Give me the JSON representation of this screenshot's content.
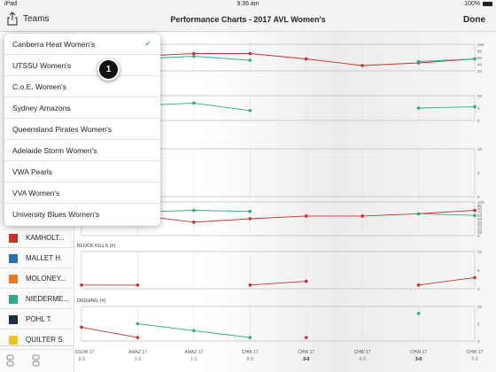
{
  "status_bar": {
    "carrier": "iPad",
    "time": "9:36 am",
    "battery": "100%"
  },
  "nav": {
    "teams_label": "Teams",
    "title": "Performance Charts - 2017 AVL Women's",
    "done_label": "Done"
  },
  "team_menu": {
    "items": [
      {
        "label": "Canberra Heat Women's",
        "selected": true
      },
      {
        "label": "UTSSU Women's",
        "selected": false
      },
      {
        "label": "C.o.E. Women's",
        "selected": false
      },
      {
        "label": "Sydney Amazons",
        "selected": false
      },
      {
        "label": "Queensland Pirates Women's",
        "selected": false
      },
      {
        "label": "Adelaide Storm Women's",
        "selected": false
      },
      {
        "label": "VWA Pearls",
        "selected": false
      },
      {
        "label": "VVA Women's",
        "selected": false
      },
      {
        "label": "University Blues Women's",
        "selected": false
      }
    ],
    "badge": "1"
  },
  "players": [
    {
      "name": "KAMHOLT...",
      "color": "#c9302c"
    },
    {
      "name": "MALLET H.",
      "color": "#2a6db5"
    },
    {
      "name": "MOLONEY...",
      "color": "#e57b25"
    },
    {
      "name": "NIEDERME...",
      "color": "#2bab8a"
    },
    {
      "name": "POHL T.",
      "color": "#1f2d44"
    },
    {
      "name": "QUILTER S.",
      "color": "#f2c318"
    }
  ],
  "chart_data": [
    {
      "type": "line",
      "title": "",
      "ylim": [
        0,
        100
      ],
      "yticks": [
        "100",
        "80",
        "60",
        "40",
        "20"
      ],
      "series": [
        {
          "color": "#c9302c",
          "values": [
            null,
            55,
            65,
            65,
            45,
            20,
            30,
            45
          ]
        },
        {
          "color": "#2bab8a",
          "values": [
            null,
            45,
            55,
            40,
            null,
            null,
            35,
            45
          ]
        }
      ]
    },
    {
      "type": "line",
      "title": "",
      "ylim": [
        0,
        10
      ],
      "yticks": [
        "10",
        "5",
        "0"
      ],
      "series": [
        {
          "color": "#2bab8a",
          "values": [
            null,
            6,
            7,
            4,
            null,
            null,
            5,
            5.5
          ]
        }
      ]
    },
    {
      "type": "line",
      "title": "",
      "ylim": [
        0,
        10
      ],
      "yticks": [
        "10",
        "5",
        "0"
      ],
      "series": []
    },
    {
      "type": "line",
      "title": "",
      "ylim": [
        0,
        100
      ],
      "yticks": [
        "100",
        "90",
        "80",
        "70",
        "60",
        "50",
        "40",
        "30",
        "20",
        "10",
        "0"
      ],
      "series": [
        {
          "color": "#c9302c",
          "values": [
            null,
            60,
            40,
            50,
            58,
            58,
            65,
            75
          ]
        },
        {
          "color": "#2bab8a",
          "values": [
            null,
            70,
            75,
            72,
            null,
            null,
            65,
            60
          ]
        }
      ]
    },
    {
      "type": "line",
      "title": "BLOCK KILLS (#)",
      "ylim": [
        0,
        10
      ],
      "yticks": [
        "10",
        "5",
        "0"
      ],
      "series": [
        {
          "color": "#c9302c",
          "values": [
            1,
            1,
            null,
            1,
            2,
            null,
            1,
            3
          ]
        }
      ]
    },
    {
      "type": "line",
      "title": "DIGGING (#)",
      "ylim": [
        0,
        10
      ],
      "yticks": [
        "10",
        "5",
        "0"
      ],
      "series": [
        {
          "color": "#c9302c",
          "values": [
            4,
            1,
            null,
            null,
            1,
            null,
            null,
            null
          ]
        },
        {
          "color": "#2bab8a",
          "values": [
            null,
            5,
            3,
            1,
            null,
            null,
            8,
            null
          ]
        }
      ]
    }
  ],
  "x_axis": {
    "categories": [
      {
        "name": "UTSSUW 17",
        "score": "2-3",
        "bold": false
      },
      {
        "name": "AMAZ 17",
        "score": "1-3",
        "bold": false
      },
      {
        "name": "AMAZ 17",
        "score": "1-1",
        "bold": false
      },
      {
        "name": "CHW 17",
        "score": "0-3",
        "bold": false
      },
      {
        "name": "CHW 17",
        "score": "3-0",
        "bold": true
      },
      {
        "name": "CHW 17",
        "score": "0-3",
        "bold": false
      },
      {
        "name": "CHW 17",
        "score": "3-0",
        "bold": true
      },
      {
        "name": "CHW 17",
        "score": "2-3",
        "bold": false
      }
    ]
  }
}
